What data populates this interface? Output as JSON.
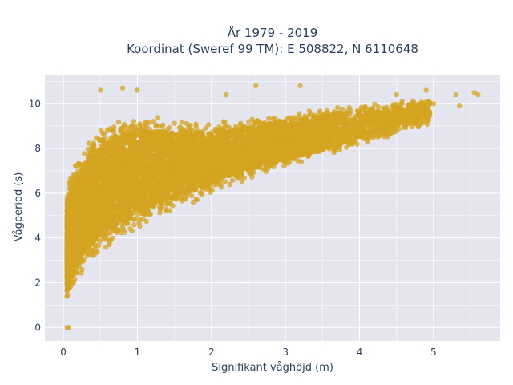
{
  "chart_data": {
    "type": "scatter",
    "title_line1": "År 1979 - 2019",
    "title_line2": "Koordinat (Sweref 99 TM): E 508822, N 6110648",
    "xlabel": "Signifikant våghöjd (m)",
    "ylabel": "Vågperiod (s)",
    "xlim": [
      -0.25,
      5.9
    ],
    "ylim": [
      -0.6,
      11.3
    ],
    "x_ticks": [
      0,
      1,
      2,
      3,
      4,
      5
    ],
    "y_ticks": [
      0,
      2,
      4,
      6,
      8,
      10
    ],
    "grid": true,
    "marker_color": "#D4A420",
    "plot_bgcolor": "#E5E5F0",
    "envelope": {
      "description": "dense cloud of hourly samples",
      "x": [
        0.05,
        0.1,
        0.2,
        0.3,
        0.5,
        0.75,
        1.0,
        1.5,
        2.0,
        2.5,
        3.0,
        3.5,
        4.0,
        4.5,
        5.0
      ],
      "y_lower": [
        1.2,
        1.5,
        2.0,
        2.6,
        3.2,
        3.8,
        4.3,
        5.2,
        5.9,
        6.6,
        7.1,
        7.6,
        8.1,
        8.6,
        9.1
      ],
      "y_upper": [
        6.0,
        7.0,
        7.6,
        8.2,
        8.9,
        9.5,
        9.6,
        9.4,
        9.2,
        9.4,
        9.6,
        9.8,
        10.0,
        10.1,
        10.2
      ]
    },
    "outlier_points": [
      {
        "x": 0.05,
        "y": 0.0
      },
      {
        "x": 0.07,
        "y": 0.0
      },
      {
        "x": 0.5,
        "y": 10.6
      },
      {
        "x": 0.8,
        "y": 10.7
      },
      {
        "x": 1.0,
        "y": 10.6
      },
      {
        "x": 2.2,
        "y": 10.4
      },
      {
        "x": 2.6,
        "y": 10.8
      },
      {
        "x": 3.2,
        "y": 10.8
      },
      {
        "x": 4.5,
        "y": 10.4
      },
      {
        "x": 4.9,
        "y": 10.6
      },
      {
        "x": 5.3,
        "y": 10.4
      },
      {
        "x": 5.55,
        "y": 10.5
      },
      {
        "x": 5.6,
        "y": 10.4
      },
      {
        "x": 5.35,
        "y": 9.9
      },
      {
        "x": 5.0,
        "y": 10.0
      },
      {
        "x": 4.9,
        "y": 9.5
      }
    ]
  }
}
